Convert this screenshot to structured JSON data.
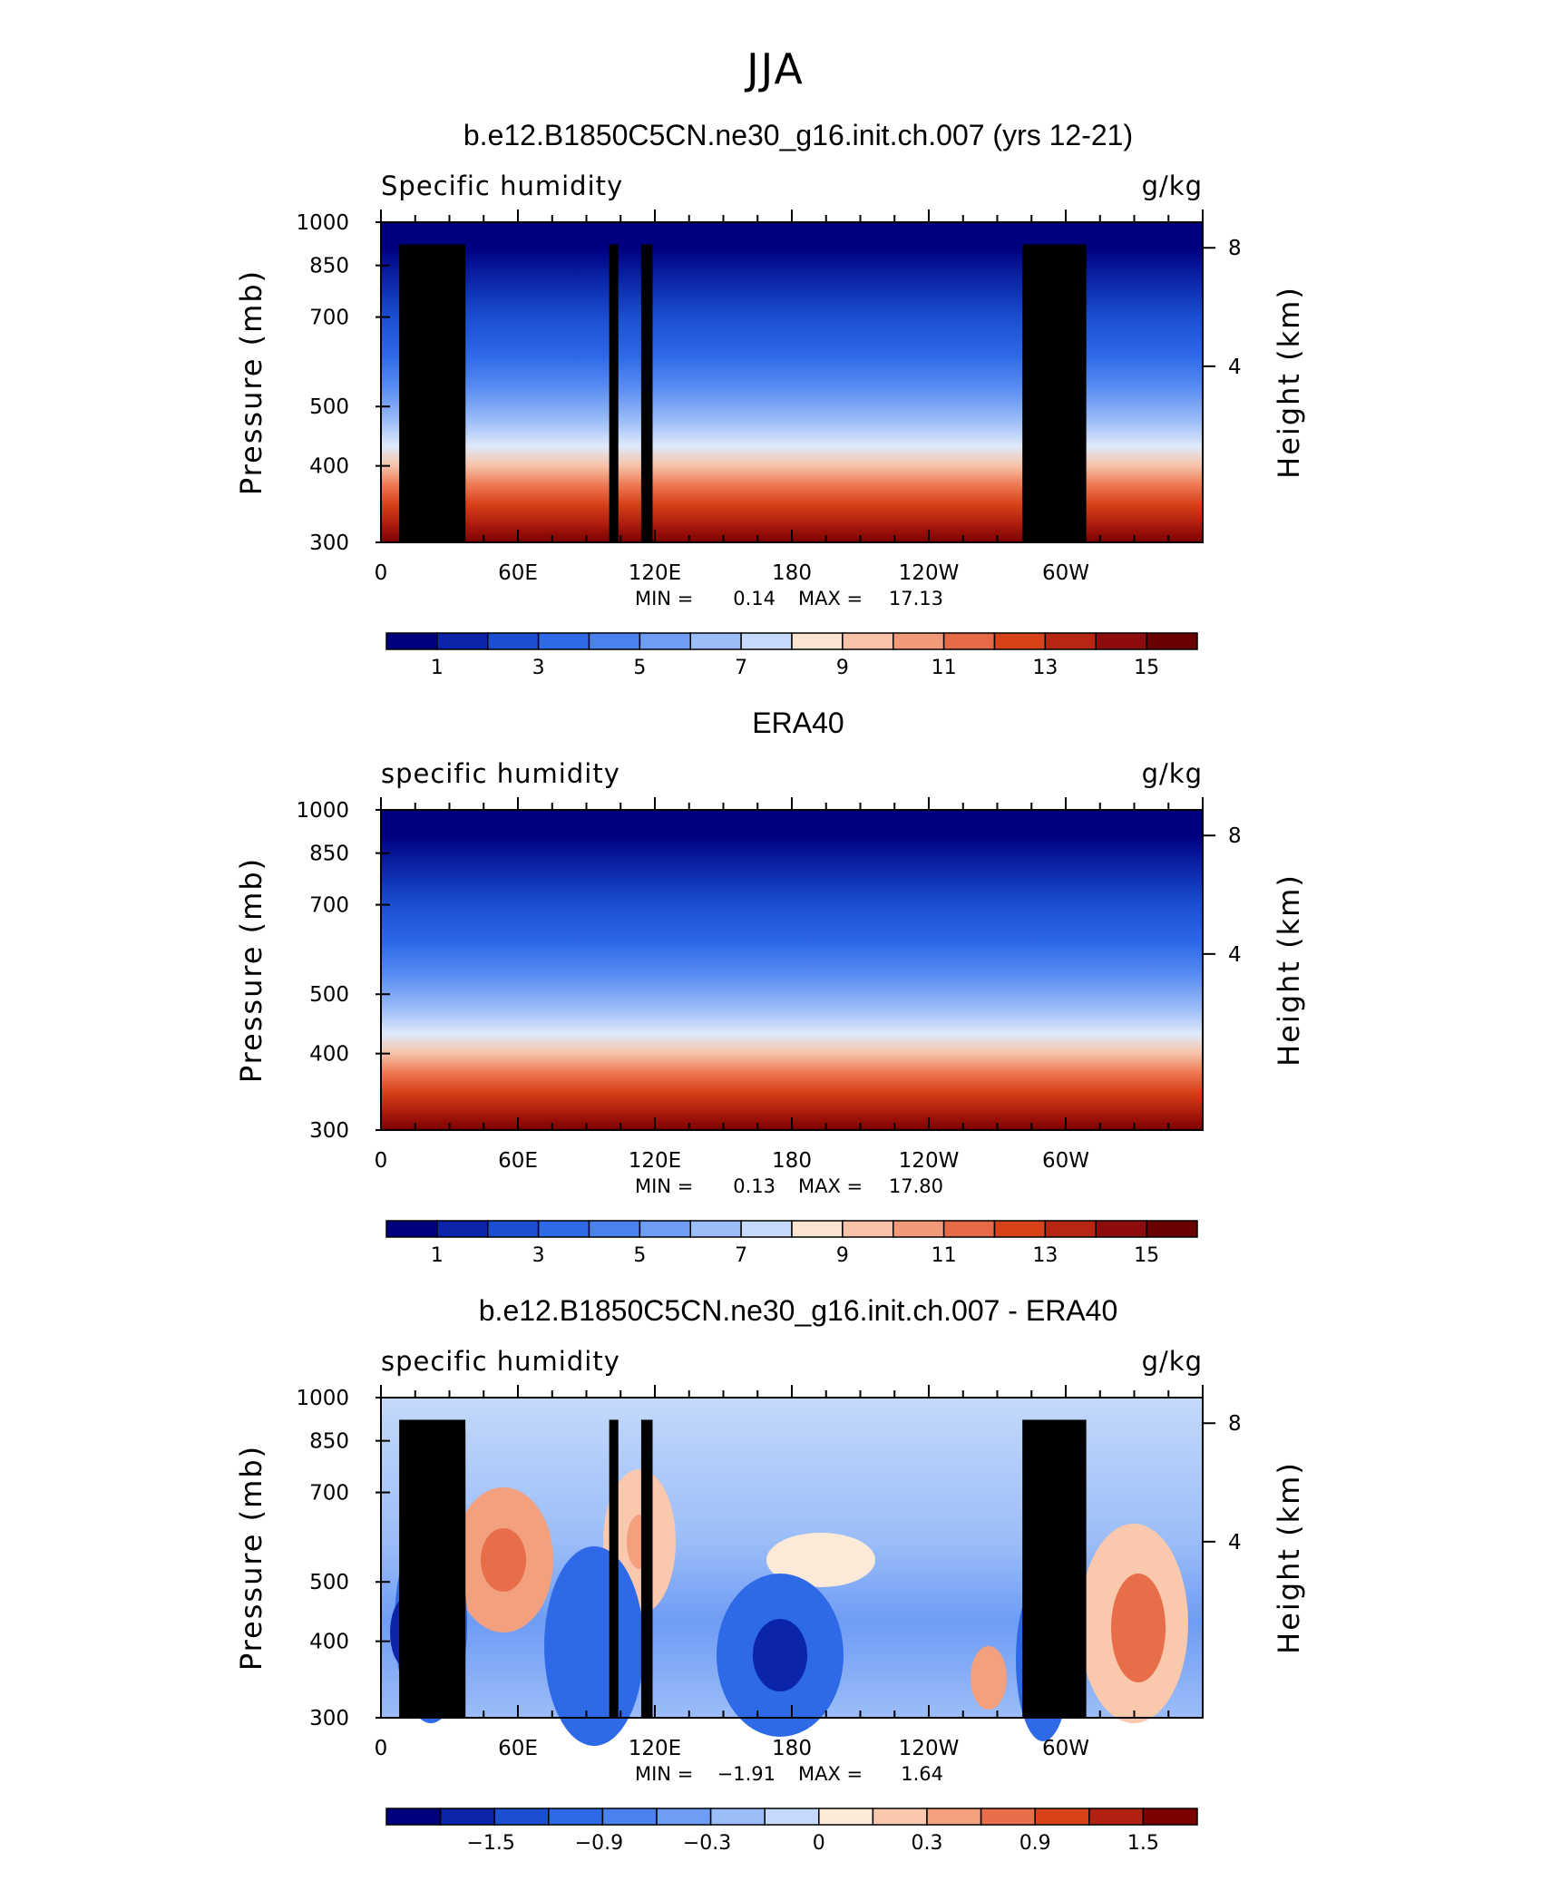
{
  "figure": {
    "title": "JJA"
  },
  "chart_data": [
    {
      "type": "heatmap",
      "title": "b.e12.B1850C5CN.ne30_g16.init.ch.007 (yrs 12-21)",
      "variable_label": "Specific humidity",
      "units": "g/kg",
      "ylabel": "Pressure (mb)",
      "y2label": "Height (km)",
      "xticks": [
        "0",
        "60E",
        "120E",
        "180",
        "120W",
        "60W"
      ],
      "yticks": [
        "300",
        "400",
        "500",
        "700",
        "850",
        "1000"
      ],
      "y2ticks": [
        "8",
        "4"
      ],
      "ylim": [
        1000,
        300
      ],
      "y_scale": "log",
      "stats": {
        "min_label": "MIN =",
        "min": "0.14",
        "max_label": "MAX =",
        "max": "17.13"
      },
      "colorbar_labels": [
        "1",
        "3",
        "5",
        "7",
        "9",
        "11",
        "13",
        "15"
      ],
      "colorbar_levels": [
        1,
        2,
        3,
        4,
        5,
        6,
        7,
        8,
        9,
        10,
        11,
        12,
        13,
        14,
        15
      ],
      "terrain_masked": true
    },
    {
      "type": "heatmap",
      "title": "ERA40",
      "variable_label": "specific humidity",
      "units": "g/kg",
      "ylabel": "Pressure (mb)",
      "y2label": "Height (km)",
      "xticks": [
        "0",
        "60E",
        "120E",
        "180",
        "120W",
        "60W"
      ],
      "yticks": [
        "300",
        "400",
        "500",
        "700",
        "850",
        "1000"
      ],
      "y2ticks": [
        "8",
        "4"
      ],
      "ylim": [
        1000,
        300
      ],
      "y_scale": "log",
      "stats": {
        "min_label": "MIN =",
        "min": "0.13",
        "max_label": "MAX =",
        "max": "17.80"
      },
      "colorbar_labels": [
        "1",
        "3",
        "5",
        "7",
        "9",
        "11",
        "13",
        "15"
      ],
      "colorbar_levels": [
        1,
        2,
        3,
        4,
        5,
        6,
        7,
        8,
        9,
        10,
        11,
        12,
        13,
        14,
        15
      ],
      "terrain_masked": false
    },
    {
      "type": "heatmap",
      "title": "b.e12.B1850C5CN.ne30_g16.init.ch.007 - ERA40",
      "variable_label": "specific humidity",
      "units": "g/kg",
      "ylabel": "Pressure (mb)",
      "y2label": "Height (km)",
      "xticks": [
        "0",
        "60E",
        "120E",
        "180",
        "120W",
        "60W"
      ],
      "yticks": [
        "300",
        "400",
        "500",
        "700",
        "850",
        "1000"
      ],
      "y2ticks": [
        "8",
        "4"
      ],
      "ylim": [
        1000,
        300
      ],
      "y_scale": "log",
      "stats": {
        "min_label": "MIN =",
        "min": "−1.91",
        "max_label": "MAX =",
        "max": "1.64"
      },
      "colorbar_labels": [
        "−1.5",
        "−0.9",
        "−0.3",
        "0",
        "0.3",
        "0.9",
        "1.5"
      ],
      "colorbar_levels": [
        -1.8,
        -1.5,
        -1.2,
        -0.9,
        -0.6,
        -0.3,
        0,
        0.1,
        0.3,
        0.6,
        0.9,
        1.2,
        1.5,
        1.8
      ],
      "terrain_masked": true
    }
  ]
}
